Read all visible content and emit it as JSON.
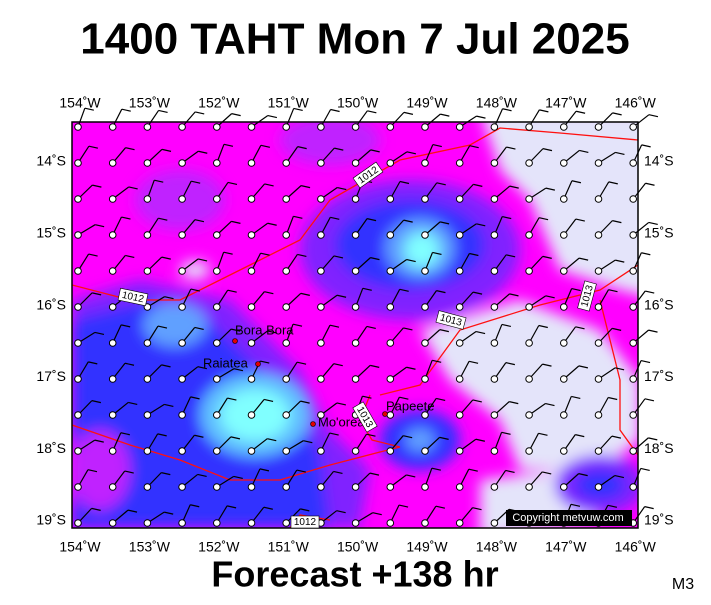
{
  "header": {
    "title": "1400 TAHT Mon 7 Jul 2025"
  },
  "map": {
    "longitudes": [
      "154˚W",
      "153˚W",
      "152˚W",
      "151˚W",
      "150˚W",
      "149˚W",
      "148˚W",
      "147˚W",
      "146˚W"
    ],
    "latitudes": [
      "14˚S",
      "15˚S",
      "16˚S",
      "17˚S",
      "18˚S",
      "19˚S"
    ],
    "places": [
      "Bora Bora",
      "Raiatea",
      "Mo'orea",
      "Papeete"
    ],
    "isobar_labels": [
      "1012",
      "1012",
      "1013",
      "1013",
      "1013",
      "1012"
    ],
    "copyright": "Copyright metvuw.com"
  },
  "footer": {
    "forecast": "Forecast +138 hr",
    "model": "M3"
  }
}
